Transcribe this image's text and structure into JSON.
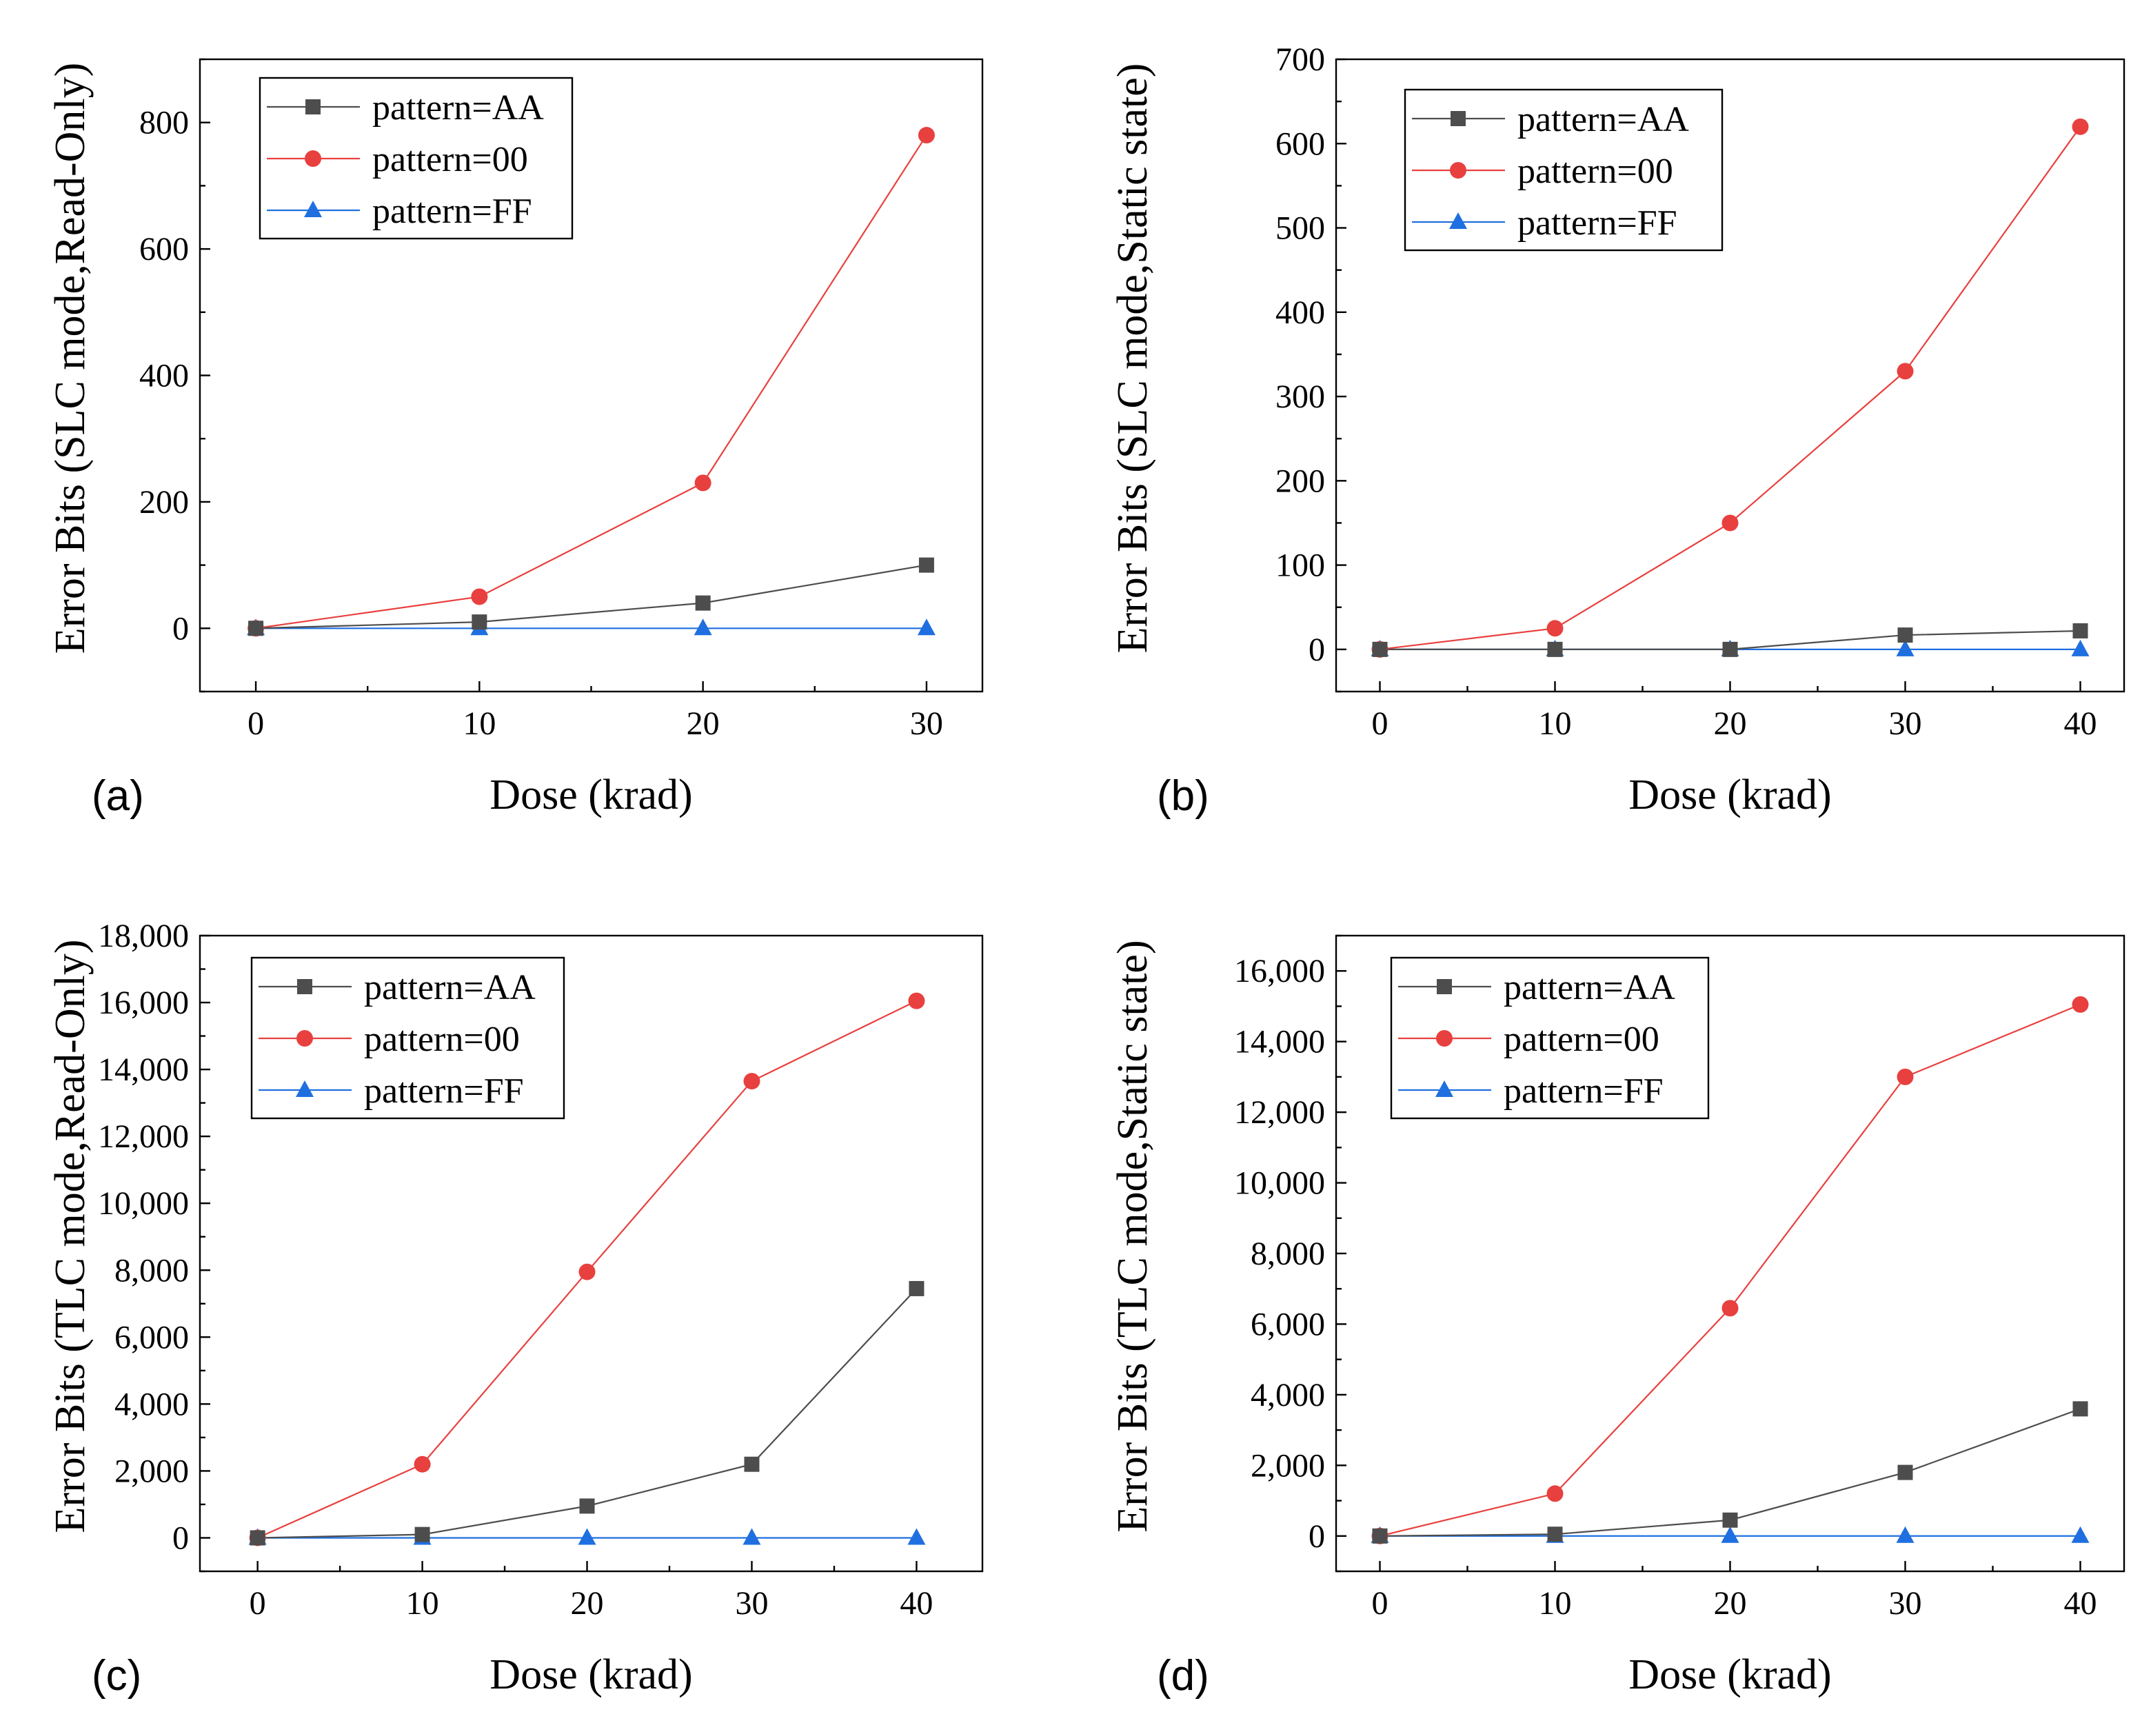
{
  "figure_title": "",
  "chart_data": [
    {
      "type": "line",
      "panel_label": "(a)",
      "title": "",
      "xlabel": "Dose (krad)",
      "ylabel": "Error Bits (SLC mode,Read-Only)",
      "xlim": [
        -2.5,
        32.5
      ],
      "ylim": [
        -100,
        900
      ],
      "xticks": [
        0,
        10,
        20,
        30
      ],
      "xtick_labels": [
        "0",
        "10",
        "20",
        "30"
      ],
      "yticks": [
        0,
        200,
        400,
        600,
        800
      ],
      "ytick_labels": [
        "0",
        "200",
        "400",
        "600",
        "800"
      ],
      "grid": false,
      "legend_position": "top-left",
      "x": [
        0,
        10,
        20,
        30
      ],
      "series": [
        {
          "name": "pattern=AA",
          "values": [
            0,
            10,
            40,
            100
          ],
          "color": "#4d4d4d",
          "marker": "square"
        },
        {
          "name": "pattern=00",
          "values": [
            0,
            50,
            230,
            780
          ],
          "color": "#e8403e",
          "marker": "circle"
        },
        {
          "name": "pattern=FF",
          "values": [
            0,
            0,
            0,
            0
          ],
          "color": "#1f6fe0",
          "marker": "triangle"
        }
      ]
    },
    {
      "type": "line",
      "panel_label": "(b)",
      "title": "",
      "xlabel": "Dose (krad)",
      "ylabel": "Error Bits (SLC mode,Static state)",
      "xlim": [
        -2.5,
        42.5
      ],
      "ylim": [
        -50,
        700
      ],
      "xticks": [
        0,
        10,
        20,
        30,
        40
      ],
      "xtick_labels": [
        "0",
        "10",
        "20",
        "30",
        "40"
      ],
      "yticks": [
        0,
        100,
        200,
        300,
        400,
        500,
        600,
        700
      ],
      "ytick_labels": [
        "0",
        "100",
        "200",
        "300",
        "400",
        "500",
        "600",
        "700"
      ],
      "grid": false,
      "legend_position": "top-left",
      "x": [
        0,
        10,
        20,
        30,
        40
      ],
      "series": [
        {
          "name": "pattern=AA",
          "values": [
            0,
            0,
            0,
            17,
            22
          ],
          "color": "#4d4d4d",
          "marker": "square"
        },
        {
          "name": "pattern=00",
          "values": [
            0,
            25,
            150,
            330,
            620
          ],
          "color": "#e8403e",
          "marker": "circle"
        },
        {
          "name": "pattern=FF",
          "values": [
            0,
            0,
            0,
            0,
            0
          ],
          "color": "#1f6fe0",
          "marker": "triangle"
        }
      ]
    },
    {
      "type": "line",
      "panel_label": "(c)",
      "title": "",
      "xlabel": "Dose (krad)",
      "ylabel": "Error Bits (TLC mode,Read-Only)",
      "xlim": [
        -3.5,
        44
      ],
      "ylim": [
        -1000,
        18000
      ],
      "xticks": [
        0,
        10,
        20,
        30,
        40
      ],
      "xtick_labels": [
        "0",
        "10",
        "20",
        "30",
        "40"
      ],
      "yticks": [
        0,
        2000,
        4000,
        6000,
        8000,
        10000,
        12000,
        14000,
        16000,
        18000
      ],
      "ytick_labels": [
        "0",
        "2,000",
        "4,000",
        "6,000",
        "8,000",
        "10,000",
        "12,000",
        "14,000",
        "16,000",
        "18,000"
      ],
      "grid": false,
      "legend_position": "top-left",
      "x": [
        0,
        10,
        20,
        30,
        40
      ],
      "series": [
        {
          "name": "pattern=AA",
          "values": [
            0,
            100,
            950,
            2200,
            7450
          ],
          "color": "#4d4d4d",
          "marker": "square"
        },
        {
          "name": "pattern=00",
          "values": [
            0,
            2200,
            7950,
            13650,
            16050
          ],
          "color": "#e8403e",
          "marker": "circle"
        },
        {
          "name": "pattern=FF",
          "values": [
            0,
            0,
            0,
            0,
            0
          ],
          "color": "#1f6fe0",
          "marker": "triangle"
        }
      ]
    },
    {
      "type": "line",
      "panel_label": "(d)",
      "title": "",
      "xlabel": "Dose (krad)",
      "ylabel": "Error Bits (TLC mode,Static state)",
      "xlim": [
        -2.5,
        42.5
      ],
      "ylim": [
        -1000,
        17000
      ],
      "xticks": [
        0,
        10,
        20,
        30,
        40
      ],
      "xtick_labels": [
        "0",
        "10",
        "20",
        "30",
        "40"
      ],
      "yticks": [
        0,
        2000,
        4000,
        6000,
        8000,
        10000,
        12000,
        14000,
        16000
      ],
      "ytick_labels": [
        "0",
        "2,000",
        "4,000",
        "6,000",
        "8,000",
        "10,000",
        "12,000",
        "14,000",
        "16,000"
      ],
      "grid": false,
      "legend_position": "top-left",
      "x": [
        0,
        10,
        20,
        30,
        40
      ],
      "series": [
        {
          "name": "pattern=AA",
          "values": [
            0,
            50,
            450,
            1800,
            3600
          ],
          "color": "#4d4d4d",
          "marker": "square"
        },
        {
          "name": "pattern=00",
          "values": [
            0,
            1200,
            6450,
            13000,
            15050
          ],
          "color": "#e8403e",
          "marker": "circle"
        },
        {
          "name": "pattern=FF",
          "values": [
            0,
            0,
            0,
            0,
            0
          ],
          "color": "#1f6fe0",
          "marker": "triangle"
        }
      ]
    }
  ]
}
